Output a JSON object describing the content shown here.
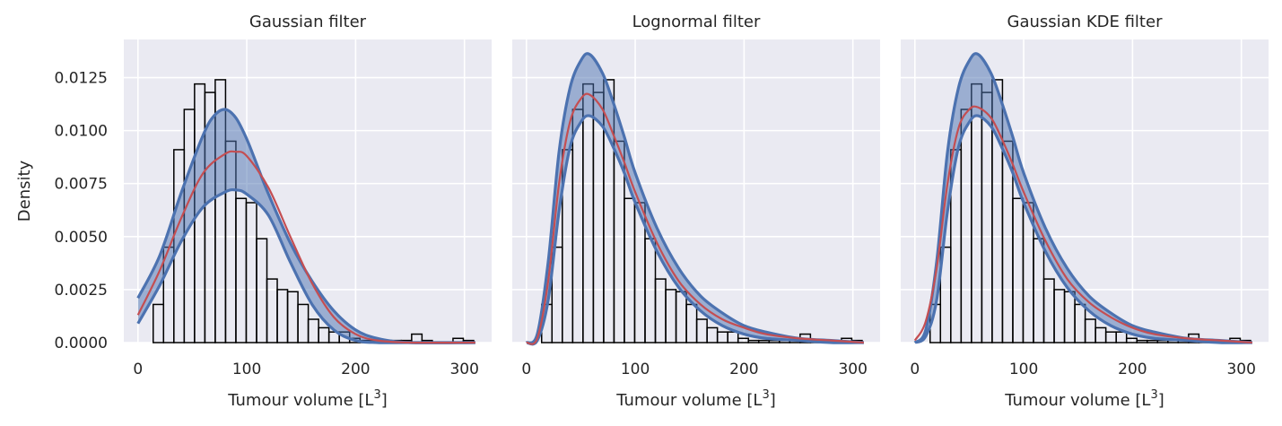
{
  "chart_data": [
    {
      "type": "histogram",
      "title": "Gaussian filter",
      "xlabel": "Tumour volume [L3]",
      "ylabel": "Density",
      "xlim": [
        -13,
        325
      ],
      "ylim": [
        0,
        0.0143
      ],
      "xticks": [
        0,
        100,
        200,
        300
      ],
      "yticks": [
        0.0,
        0.0025,
        0.005,
        0.0075,
        0.01,
        0.0125
      ],
      "ytick_labels": [
        "0.0000",
        "0.0025",
        "0.0050",
        "0.0075",
        "0.0100",
        "0.0125"
      ],
      "grid": true,
      "histogram": {
        "bin_edges": [
          14,
          23.5,
          33,
          42.5,
          52,
          61.5,
          71,
          80.5,
          90,
          99.5,
          109,
          118.5,
          128,
          137.5,
          147,
          156.5,
          166,
          175.5,
          185,
          194.5,
          204,
          213.5,
          223,
          232.5,
          242,
          251.5,
          261,
          270.5,
          280,
          289.5,
          299,
          308.5
        ],
        "densities": [
          0.0018,
          0.0045,
          0.0091,
          0.011,
          0.0122,
          0.0118,
          0.0124,
          0.0095,
          0.0068,
          0.0066,
          0.0049,
          0.003,
          0.0025,
          0.0024,
          0.0018,
          0.0011,
          0.0007,
          0.0005,
          0.0005,
          0.0002,
          0.0001,
          0.0001,
          0.0001,
          0.0001,
          0.0001,
          0.0004,
          0.0001,
          0.0,
          0.0,
          0.0002,
          0.0001
        ]
      },
      "mean_curve": {
        "x": [
          0,
          20,
          40,
          60,
          80,
          90,
          100,
          120,
          140,
          160,
          180,
          200,
          220,
          250,
          310
        ],
        "y": [
          0.0013,
          0.0034,
          0.0059,
          0.008,
          0.0089,
          0.009,
          0.0088,
          0.0073,
          0.005,
          0.0028,
          0.0012,
          0.0004,
          0.0001,
          0.0,
          0.0
        ]
      },
      "upper_curve": {
        "x": [
          0,
          20,
          40,
          60,
          70,
          80,
          90,
          100,
          110,
          120,
          140,
          160,
          180,
          200,
          220,
          250,
          310
        ],
        "y": [
          0.0021,
          0.0041,
          0.0071,
          0.0098,
          0.0107,
          0.011,
          0.0106,
          0.0096,
          0.0083,
          0.007,
          0.0047,
          0.0029,
          0.0015,
          0.0006,
          0.0002,
          0.0,
          0.0
        ]
      },
      "lower_curve": {
        "x": [
          0,
          20,
          40,
          60,
          80,
          90,
          100,
          120,
          140,
          160,
          180,
          200,
          220,
          250,
          310
        ],
        "y": [
          0.0009,
          0.0027,
          0.0048,
          0.0064,
          0.0071,
          0.0072,
          0.007,
          0.006,
          0.0038,
          0.0018,
          0.0006,
          0.0001,
          0.0,
          0.0,
          0.0
        ]
      }
    },
    {
      "type": "histogram",
      "title": "Lognormal filter",
      "xlabel": "Tumour volume [L3]",
      "ylabel": "",
      "xlim": [
        -13,
        325
      ],
      "ylim": [
        0,
        0.0143
      ],
      "xticks": [
        0,
        100,
        200,
        300
      ],
      "yticks": [
        0.0,
        0.0025,
        0.005,
        0.0075,
        0.01,
        0.0125
      ],
      "ytick_labels": [],
      "grid": true,
      "histogram": {
        "bin_edges": [
          14,
          23.5,
          33,
          42.5,
          52,
          61.5,
          71,
          80.5,
          90,
          99.5,
          109,
          118.5,
          128,
          137.5,
          147,
          156.5,
          166,
          175.5,
          185,
          194.5,
          204,
          213.5,
          223,
          232.5,
          242,
          251.5,
          261,
          270.5,
          280,
          289.5,
          299,
          308.5
        ],
        "densities": [
          0.0018,
          0.0045,
          0.0091,
          0.011,
          0.0122,
          0.0118,
          0.0124,
          0.0095,
          0.0068,
          0.0066,
          0.0049,
          0.003,
          0.0025,
          0.0024,
          0.0018,
          0.0011,
          0.0007,
          0.0005,
          0.0005,
          0.0002,
          0.0001,
          0.0001,
          0.0001,
          0.0001,
          0.0001,
          0.0004,
          0.0001,
          0.0,
          0.0,
          0.0002,
          0.0001
        ]
      },
      "mean_curve": {
        "x": [
          0,
          10,
          20,
          30,
          40,
          50,
          58,
          70,
          80,
          90,
          100,
          120,
          140,
          160,
          180,
          200,
          220,
          250,
          280,
          310
        ],
        "y": [
          0.0,
          0.0002,
          0.0029,
          0.0075,
          0.0104,
          0.0115,
          0.0117,
          0.011,
          0.0098,
          0.0085,
          0.0071,
          0.0047,
          0.0029,
          0.0018,
          0.0011,
          0.0007,
          0.0004,
          0.0002,
          0.0001,
          0.0
        ]
      },
      "upper_curve": {
        "x": [
          0,
          10,
          20,
          30,
          40,
          50,
          58,
          70,
          80,
          90,
          100,
          120,
          140,
          160,
          180,
          200,
          220,
          250,
          280,
          310
        ],
        "y": [
          0.0,
          0.0004,
          0.0038,
          0.009,
          0.012,
          0.0133,
          0.0136,
          0.0127,
          0.0113,
          0.0097,
          0.008,
          0.0054,
          0.0035,
          0.0022,
          0.0014,
          0.0008,
          0.0005,
          0.0002,
          0.0001,
          0.0
        ]
      },
      "lower_curve": {
        "x": [
          0,
          10,
          20,
          30,
          40,
          50,
          58,
          70,
          80,
          90,
          100,
          120,
          140,
          160,
          180,
          200,
          220,
          250,
          280,
          310
        ],
        "y": [
          0.0,
          0.0001,
          0.002,
          0.0062,
          0.0092,
          0.0104,
          0.0107,
          0.0102,
          0.0092,
          0.008,
          0.0066,
          0.0043,
          0.0026,
          0.0015,
          0.0008,
          0.0004,
          0.0002,
          0.0001,
          0.0,
          0.0
        ]
      }
    },
    {
      "type": "histogram",
      "title": "Gaussian KDE filter",
      "xlabel": "Tumour volume [L3]",
      "ylabel": "",
      "xlim": [
        -13,
        325
      ],
      "ylim": [
        0,
        0.0143
      ],
      "xticks": [
        0,
        100,
        200,
        300
      ],
      "yticks": [
        0.0,
        0.0025,
        0.005,
        0.0075,
        0.01,
        0.0125
      ],
      "ytick_labels": [],
      "grid": true,
      "histogram": {
        "bin_edges": [
          14,
          23.5,
          33,
          42.5,
          52,
          61.5,
          71,
          80.5,
          90,
          99.5,
          109,
          118.5,
          128,
          137.5,
          147,
          156.5,
          166,
          175.5,
          185,
          194.5,
          204,
          213.5,
          223,
          232.5,
          242,
          251.5,
          261,
          270.5,
          280,
          289.5,
          299,
          308.5
        ],
        "densities": [
          0.0018,
          0.0045,
          0.0091,
          0.011,
          0.0122,
          0.0118,
          0.0124,
          0.0095,
          0.0068,
          0.0066,
          0.0049,
          0.003,
          0.0025,
          0.0024,
          0.0018,
          0.0011,
          0.0007,
          0.0005,
          0.0005,
          0.0002,
          0.0001,
          0.0001,
          0.0001,
          0.0001,
          0.0001,
          0.0004,
          0.0001,
          0.0,
          0.0,
          0.0002,
          0.0001
        ]
      },
      "mean_curve": {
        "x": [
          0,
          10,
          20,
          30,
          40,
          50,
          58,
          70,
          80,
          90,
          100,
          120,
          140,
          160,
          180,
          200,
          220,
          250,
          280,
          310
        ],
        "y": [
          0.0001,
          0.001,
          0.0035,
          0.0075,
          0.0101,
          0.011,
          0.0111,
          0.0106,
          0.0096,
          0.0084,
          0.0071,
          0.0048,
          0.003,
          0.0019,
          0.0012,
          0.0007,
          0.0004,
          0.0002,
          0.0001,
          0.0
        ]
      },
      "upper_curve": {
        "x": [
          0,
          10,
          20,
          30,
          40,
          50,
          58,
          70,
          80,
          90,
          100,
          120,
          140,
          160,
          180,
          200,
          220,
          250,
          280,
          310
        ],
        "y": [
          0.0,
          0.0006,
          0.0038,
          0.009,
          0.012,
          0.0133,
          0.0136,
          0.0127,
          0.0113,
          0.0097,
          0.008,
          0.0054,
          0.0035,
          0.0022,
          0.0014,
          0.0008,
          0.0005,
          0.0002,
          0.0001,
          0.0
        ]
      },
      "lower_curve": {
        "x": [
          0,
          10,
          20,
          30,
          40,
          50,
          58,
          70,
          80,
          90,
          100,
          120,
          140,
          160,
          180,
          200,
          220,
          250,
          280,
          310
        ],
        "y": [
          0.0,
          0.0003,
          0.002,
          0.0062,
          0.0092,
          0.0104,
          0.0107,
          0.0102,
          0.0092,
          0.008,
          0.0066,
          0.0043,
          0.0026,
          0.0015,
          0.0008,
          0.0004,
          0.0002,
          0.0001,
          0.0,
          0.0
        ]
      }
    }
  ],
  "colors": {
    "axes_background": "#EAEAF2",
    "grid": "#FFFFFF",
    "band_fill": "#4C72B0",
    "band_edge": "#4C72B0",
    "mean_line": "#C44E52",
    "hist_edge": "#000000",
    "text": "#262626"
  }
}
